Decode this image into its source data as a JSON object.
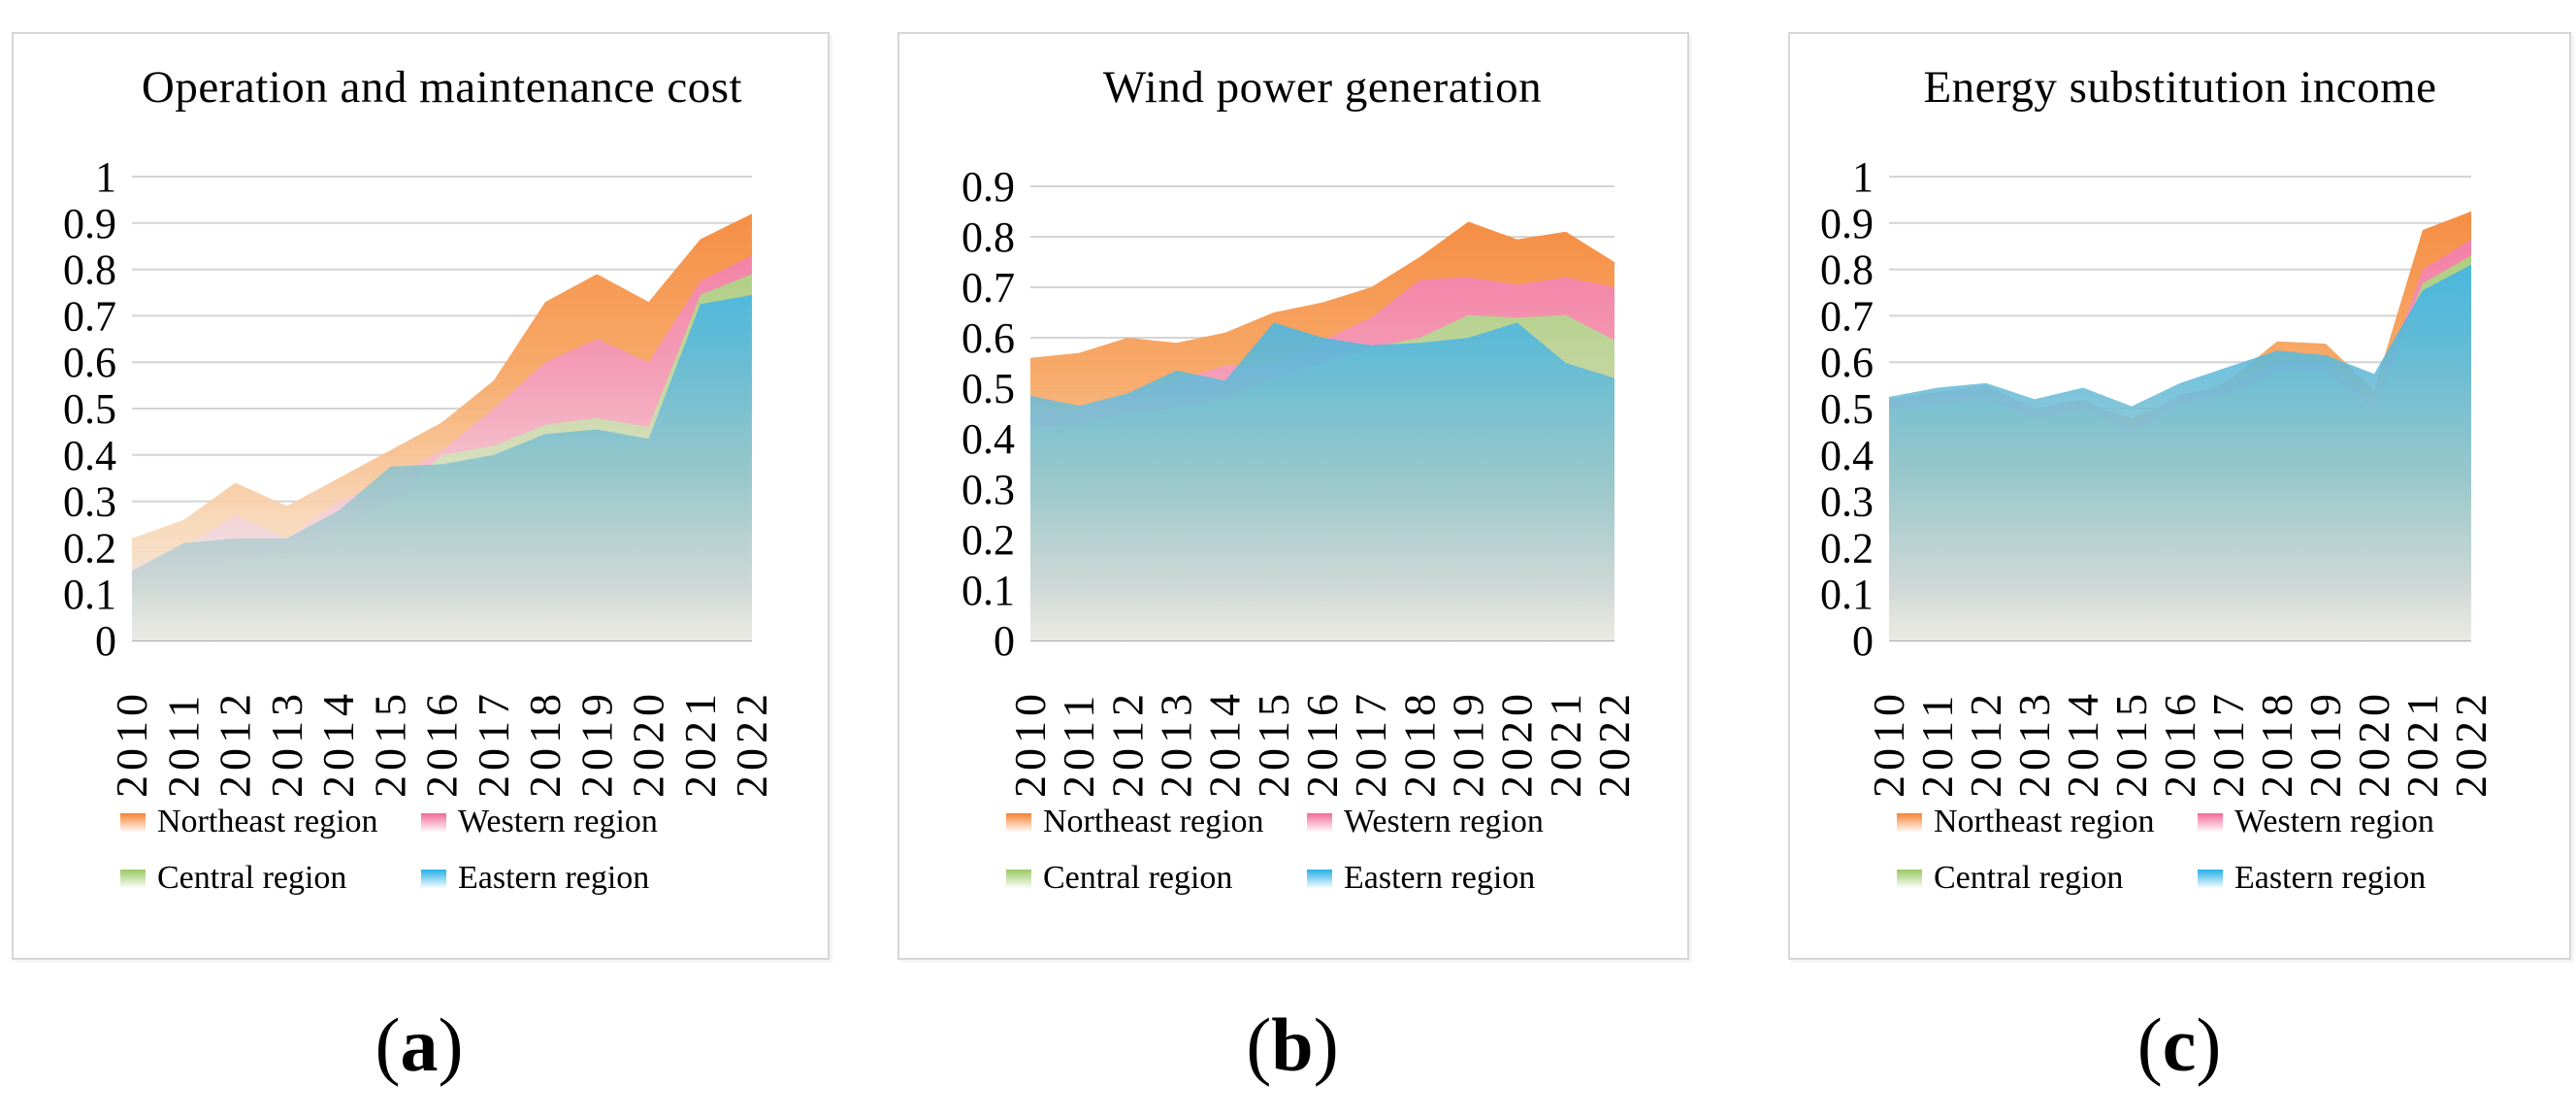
{
  "chart_data": [
    {
      "id": "a",
      "type": "area",
      "title": "Operation and maintenance cost",
      "caption": {
        "open": "(",
        "letter": "a",
        "close": ")"
      },
      "x": [
        "2010",
        "2011",
        "2012",
        "2013",
        "2014",
        "2015",
        "2016",
        "2017",
        "2018",
        "2019",
        "2020",
        "2021",
        "2022"
      ],
      "y_max": 1.0,
      "y_ticks": [
        "1",
        "0.9",
        "0.8",
        "0.7",
        "0.6",
        "0.5",
        "0.4",
        "0.3",
        "0.2",
        "0.1",
        "0"
      ],
      "grid": true,
      "legend_position": "bottom",
      "x_label_rotation": -90,
      "series": [
        {
          "name": "Northeast region",
          "color": "#F5873B",
          "values": [
            0.22,
            0.26,
            0.34,
            0.29,
            0.35,
            0.41,
            0.47,
            0.56,
            0.73,
            0.79,
            0.73,
            0.865,
            0.92
          ]
        },
        {
          "name": "Western region",
          "color": "#F2719C",
          "values": [
            0.16,
            0.2,
            0.27,
            0.22,
            0.3,
            0.345,
            0.41,
            0.5,
            0.6,
            0.65,
            0.6,
            0.775,
            0.83
          ]
        },
        {
          "name": "Central region",
          "color": "#9CCB69",
          "values": [
            0.12,
            0.15,
            0.17,
            0.19,
            0.24,
            0.3,
            0.4,
            0.42,
            0.465,
            0.48,
            0.46,
            0.745,
            0.79
          ]
        },
        {
          "name": "Eastern region",
          "color": "#2FB4E9",
          "values": [
            0.15,
            0.21,
            0.22,
            0.22,
            0.28,
            0.375,
            0.38,
            0.4,
            0.445,
            0.455,
            0.435,
            0.725,
            0.745
          ]
        }
      ]
    },
    {
      "id": "b",
      "type": "area",
      "title": "Wind power generation",
      "caption": {
        "open": "(",
        "letter": "b",
        "close": ")"
      },
      "x": [
        "2010",
        "2011",
        "2012",
        "2013",
        "2014",
        "2015",
        "2016",
        "2017",
        "2018",
        "2019",
        "2020",
        "2021",
        "2022"
      ],
      "y_max": 0.9,
      "y_ticks": [
        "0.9",
        "0.8",
        "0.7",
        "0.6",
        "0.5",
        "0.4",
        "0.3",
        "0.2",
        "0.1",
        "0"
      ],
      "grid": true,
      "legend_position": "bottom",
      "x_label_rotation": -90,
      "series": [
        {
          "name": "Northeast region",
          "color": "#F5873B",
          "values": [
            0.56,
            0.57,
            0.6,
            0.59,
            0.61,
            0.65,
            0.67,
            0.7,
            0.76,
            0.83,
            0.795,
            0.81,
            0.75
          ]
        },
        {
          "name": "Western region",
          "color": "#F2719C",
          "values": [
            0.45,
            0.46,
            0.49,
            0.515,
            0.545,
            0.545,
            0.595,
            0.64,
            0.715,
            0.72,
            0.705,
            0.72,
            0.7
          ]
        },
        {
          "name": "Central region",
          "color": "#9CCB69",
          "values": [
            0.42,
            0.43,
            0.45,
            0.46,
            0.48,
            0.52,
            0.55,
            0.58,
            0.6,
            0.645,
            0.64,
            0.645,
            0.595
          ]
        },
        {
          "name": "Eastern region",
          "color": "#2FB4E9",
          "values": [
            0.485,
            0.465,
            0.49,
            0.535,
            0.515,
            0.63,
            0.6,
            0.585,
            0.59,
            0.6,
            0.63,
            0.55,
            0.52
          ]
        }
      ]
    },
    {
      "id": "c",
      "type": "area",
      "title": "Energy substitution income",
      "caption": {
        "open": "(",
        "letter": "c",
        "close": ")"
      },
      "x": [
        "2010",
        "2011",
        "2012",
        "2013",
        "2014",
        "2015",
        "2016",
        "2017",
        "2018",
        "2019",
        "2020",
        "2021",
        "2022"
      ],
      "y_max": 1.0,
      "y_ticks": [
        "1",
        "0.9",
        "0.8",
        "0.7",
        "0.6",
        "0.5",
        "0.4",
        "0.3",
        "0.2",
        "0.1",
        "0"
      ],
      "grid": true,
      "legend_position": "bottom",
      "x_label_rotation": -90,
      "series": [
        {
          "name": "Northeast region",
          "color": "#F5873B",
          "values": [
            0.51,
            0.52,
            0.53,
            0.49,
            0.51,
            0.48,
            0.52,
            0.56,
            0.645,
            0.64,
            0.54,
            0.885,
            0.925
          ]
        },
        {
          "name": "Western region",
          "color": "#F2719C",
          "values": [
            0.52,
            0.535,
            0.55,
            0.5,
            0.52,
            0.465,
            0.53,
            0.55,
            0.6,
            0.6,
            0.51,
            0.8,
            0.865
          ]
        },
        {
          "name": "Central region",
          "color": "#9CCB69",
          "values": [
            0.5,
            0.51,
            0.52,
            0.48,
            0.5,
            0.45,
            0.51,
            0.53,
            0.58,
            0.58,
            0.5,
            0.77,
            0.83
          ]
        },
        {
          "name": "Eastern region",
          "color": "#2FB4E9",
          "values": [
            0.525,
            0.545,
            0.555,
            0.52,
            0.545,
            0.505,
            0.555,
            0.59,
            0.625,
            0.615,
            0.575,
            0.755,
            0.81
          ]
        }
      ]
    }
  ]
}
